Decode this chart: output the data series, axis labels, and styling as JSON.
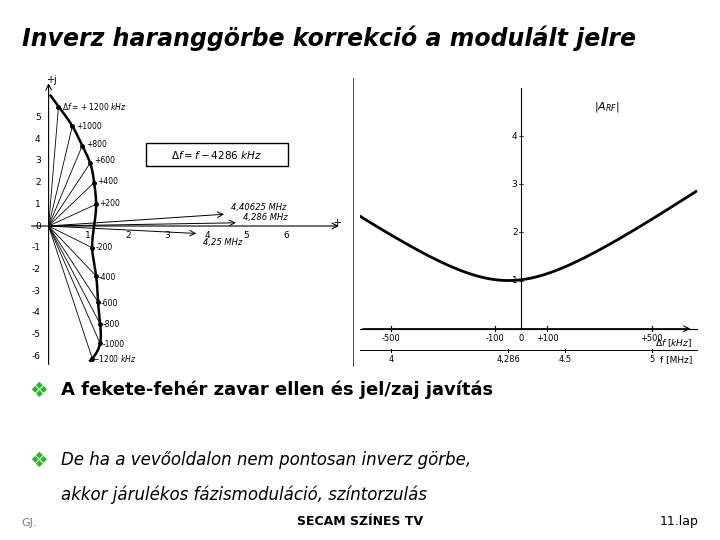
{
  "title": "Inverz haranggörbe korrekció a modulált jelre",
  "title_fontsize": 17,
  "background_color": "#ffffff",
  "green_line_color": "#3a7d24",
  "bullet_color": "#2db52d",
  "bullet_char": "⚇",
  "line1": "A fekete-fehér zavar ellen és jel/zaj javítás",
  "line2a": "De ha a vevőoldalon nem pontosan inverz görbe,",
  "line2b": "akkor járulékos fázismoduláció, színtorzulás",
  "footer_left": "GJ.",
  "footer_center": "SECAM SZÍNES TV",
  "footer_right": "11.lap",
  "diagram_bg": "#f0ede8",
  "left_xlim": [
    -0.5,
    7.5
  ],
  "left_ylim": [
    -6.5,
    6.8
  ],
  "right_xlim": [
    -620,
    680
  ],
  "right_ylim": [
    -0.8,
    5.2
  ]
}
